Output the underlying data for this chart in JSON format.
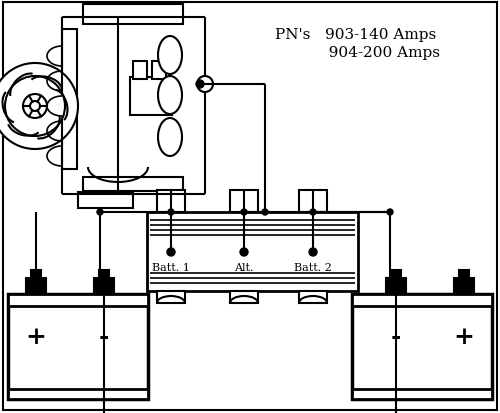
{
  "bg_color": "#ffffff",
  "lc": "#000000",
  "lw": 1.5,
  "title1": "PN's   903-140 Amps",
  "title2": "           904-200 Amps",
  "iso_labels": [
    "Batt. 1",
    "Alt.",
    "Batt. 2"
  ],
  "batt1_plus": "+",
  "batt1_minus": "-",
  "batt2_minus": "-",
  "batt2_plus": "+"
}
